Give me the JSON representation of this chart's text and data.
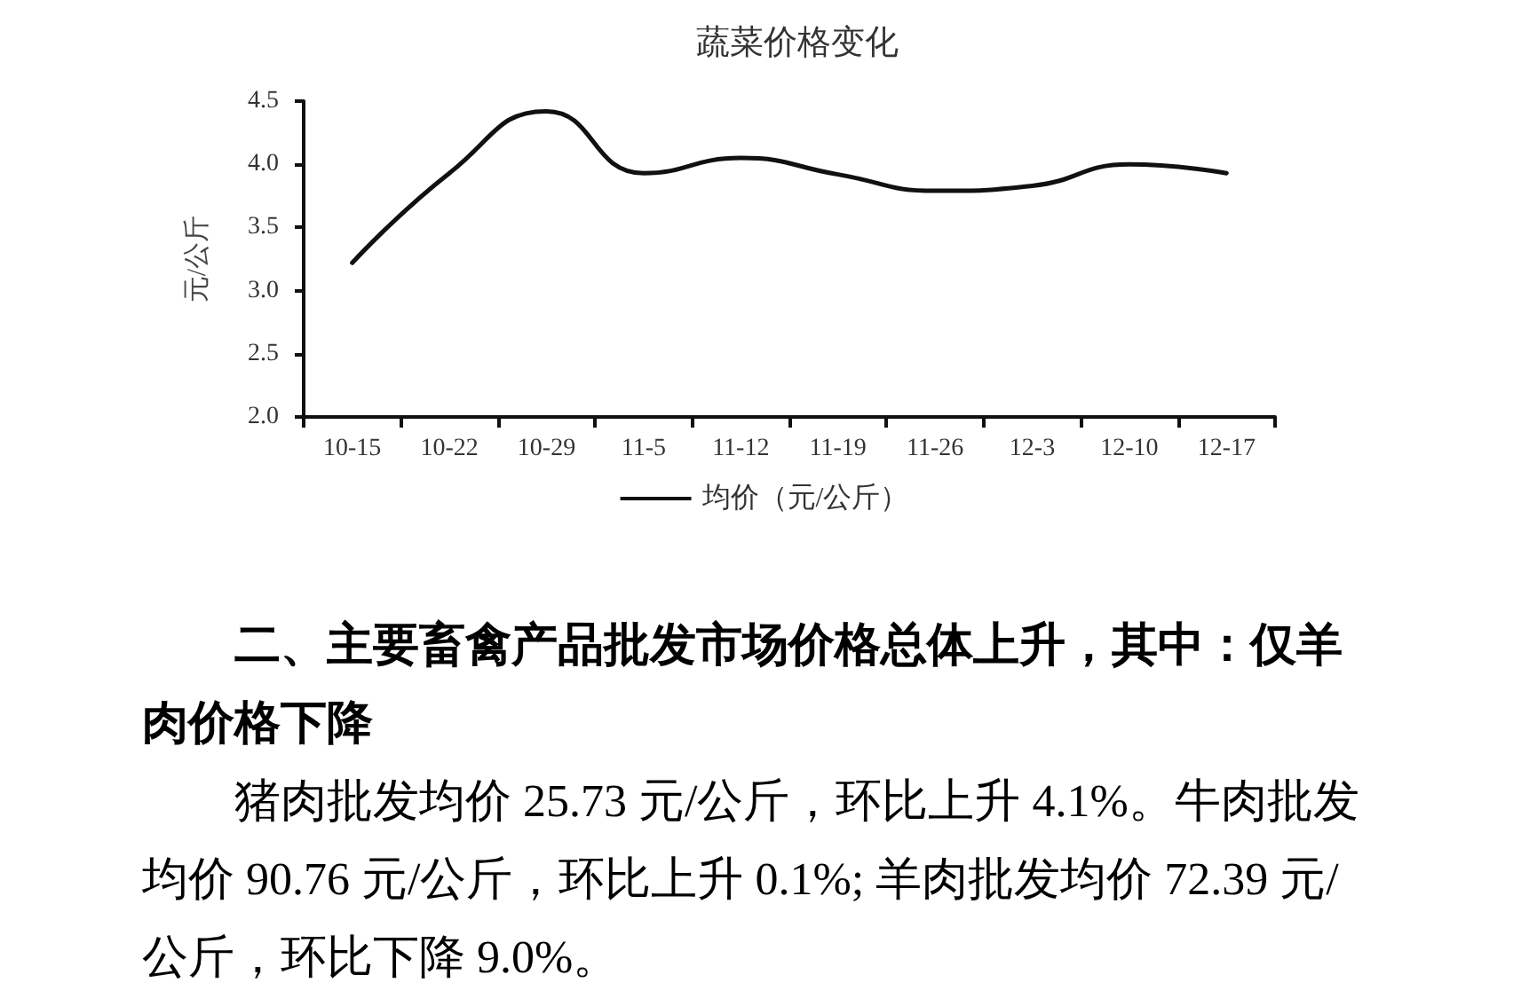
{
  "chart_data": {
    "type": "line",
    "title": "蔬菜价格变化",
    "ylabel": "元/公斤",
    "categories": [
      "10-15",
      "10-22",
      "10-29",
      "11-5",
      "11-12",
      "11-19",
      "11-26",
      "12-3",
      "12-10",
      "12-17"
    ],
    "series": [
      {
        "name": "均价（元/公斤）",
        "color": "#111111",
        "values": [
          3.22,
          3.93,
          4.42,
          3.93,
          4.05,
          3.92,
          3.79,
          3.83,
          4.0,
          3.93
        ]
      }
    ],
    "ylim": [
      2,
      4.5
    ],
    "yticks": [
      {
        "value": 2,
        "label": "2.0"
      },
      2.5,
      {
        "value": 3,
        "label": "3.0"
      },
      3.5,
      {
        "value": 4,
        "label": "4.0"
      },
      4.5
    ],
    "legend": "bottom",
    "annotations": [
      "二、主要畜禽产品批发市场价格总体上升，其中：仅羊肉价格下降",
      "猪肉批发均价 25.73 元/公斤，环比上升 4.1%。牛肉批发均价 90.76 元/公斤，环比上升 0.1%; 羊肉批发均价 72.39 元/公斤，环比下降 9.0%。"
    ]
  }
}
